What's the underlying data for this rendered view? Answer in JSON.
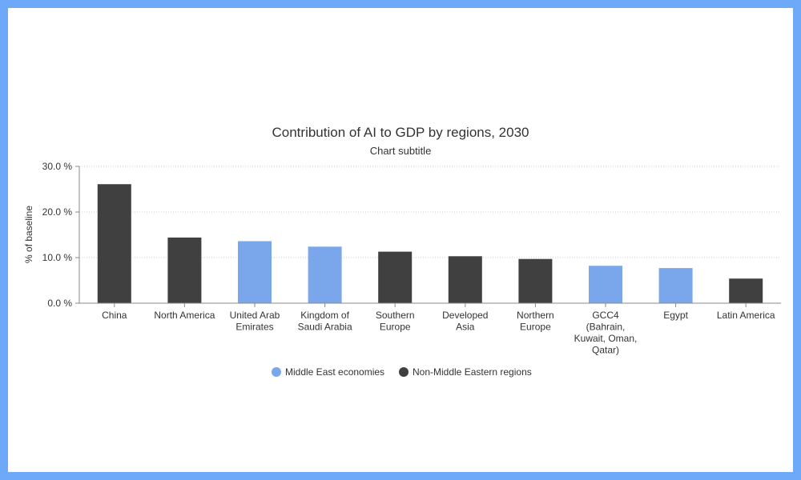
{
  "chart_data": {
    "type": "bar",
    "title": "Contribution of AI to GDP by regions, 2030",
    "subtitle": "Chart subtitle",
    "xlabel": "",
    "ylabel": "% of baseline",
    "ylim": [
      0,
      30
    ],
    "yticks": [
      0,
      10,
      20,
      30
    ],
    "ytick_labels": [
      "0.0 %",
      "10.0 %",
      "20.0 %",
      "30.0 %"
    ],
    "grid": true,
    "legend_position": "bottom",
    "categories": [
      [
        "China"
      ],
      [
        "North America"
      ],
      [
        "United Arab",
        "Emirates"
      ],
      [
        "Kingdom of",
        "Saudi Arabia"
      ],
      [
        "Southern",
        "Europe"
      ],
      [
        "Developed",
        "Asia"
      ],
      [
        "Northern",
        "Europe"
      ],
      [
        "GCC4",
        "(Bahrain,",
        "Kuwait, Oman,",
        "Qatar)"
      ],
      [
        "Egypt"
      ],
      [
        "Latin America"
      ]
    ],
    "values": [
      26.1,
      14.4,
      13.6,
      12.4,
      11.3,
      10.3,
      9.7,
      8.2,
      7.7,
      5.4
    ],
    "groups": [
      1,
      1,
      0,
      0,
      1,
      1,
      1,
      0,
      0,
      1
    ],
    "series": [
      {
        "name": "Middle East economies",
        "color": "#7aa6ec"
      },
      {
        "name": "Non-Middle Eastern regions",
        "color": "#404040"
      }
    ]
  }
}
